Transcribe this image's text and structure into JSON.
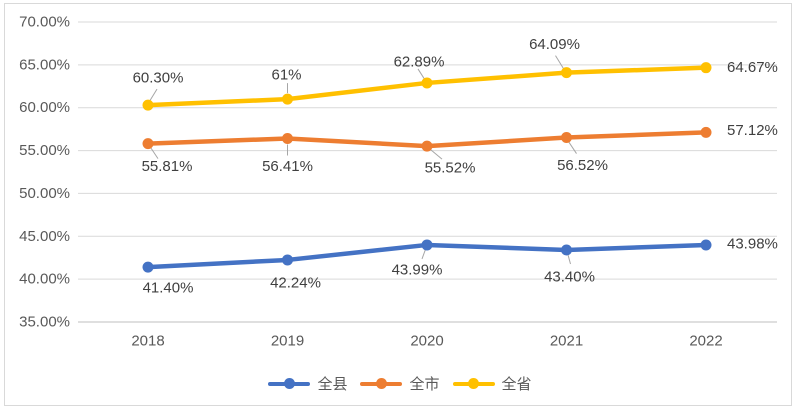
{
  "chart_data": {
    "type": "line",
    "title": "",
    "categories": [
      "2018",
      "2019",
      "2020",
      "2021",
      "2022"
    ],
    "series": [
      {
        "name": "全县",
        "color": "#4472C4",
        "values": [
          41.4,
          42.24,
          43.99,
          43.4,
          43.98
        ],
        "labels": [
          "41.40%",
          "42.24%",
          "43.99%",
          "43.40%",
          "43.98%"
        ]
      },
      {
        "name": "全市",
        "color": "#ED7D31",
        "values": [
          55.81,
          56.41,
          55.52,
          56.52,
          57.12
        ],
        "labels": [
          "55.81%",
          "56.41%",
          "55.52%",
          "56.52%",
          "57.12%"
        ]
      },
      {
        "name": "全省",
        "color": "#FFC000",
        "values": [
          60.3,
          61,
          62.89,
          64.09,
          64.67
        ],
        "labels": [
          "60.30%",
          "61%",
          "62.89%",
          "64.09%",
          "64.67%"
        ]
      }
    ],
    "y_axis": {
      "min": 35,
      "max": 70,
      "step": 5,
      "tick_labels": [
        "35.00%",
        "40.00%",
        "45.00%",
        "50.00%",
        "55.00%",
        "60.00%",
        "65.00%",
        "70.00%"
      ]
    },
    "grid": true,
    "legend_position": "bottom",
    "legend": [
      "全县",
      "全市",
      "全省"
    ],
    "colors": {
      "gridline": "#D9D9D9",
      "axis_line": "#BFBFBF",
      "tick_text": "#595959",
      "data_label_text": "#404040",
      "chart_border": "#D9D9D9",
      "leader_line": "#A6A6A6",
      "background": "#FFFFFF"
    }
  }
}
